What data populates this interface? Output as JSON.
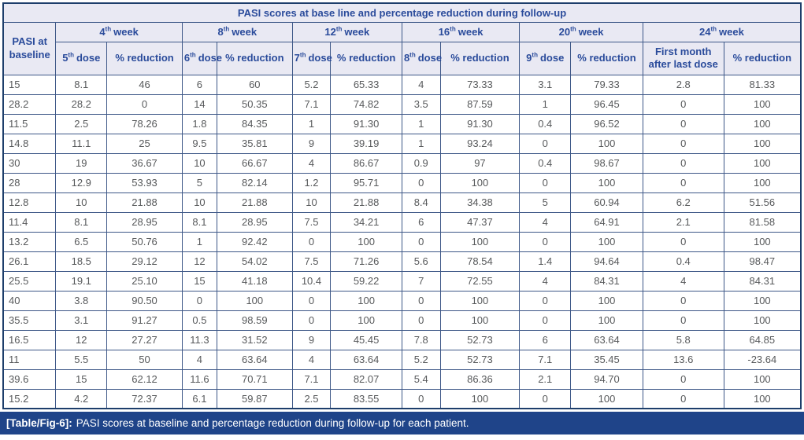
{
  "title": "PASI scores at base line and percentage reduction during follow-up",
  "header": {
    "baseline_label": "PASI at baseline",
    "pct_reduction": "% reduction",
    "first_month": "First month after last dose",
    "weeks": [
      {
        "num": "4",
        "ord": "th",
        "word": "week"
      },
      {
        "num": "8",
        "ord": "th",
        "word": "week"
      },
      {
        "num": "12",
        "ord": "th",
        "word": "week"
      },
      {
        "num": "16",
        "ord": "th",
        "word": "week"
      },
      {
        "num": "20",
        "ord": "th",
        "word": "week"
      },
      {
        "num": "24",
        "ord": "th",
        "word": "week"
      }
    ],
    "doses": [
      {
        "num": "5",
        "ord": "th",
        "word": "dose"
      },
      {
        "num": "6",
        "ord": "th",
        "word": "dose"
      },
      {
        "num": "7",
        "ord": "th",
        "word": "dose"
      },
      {
        "num": "8",
        "ord": "th",
        "word": "dose"
      },
      {
        "num": "9",
        "ord": "th",
        "word": "dose"
      }
    ]
  },
  "table": {
    "rows": [
      [
        "15",
        "8.1",
        "46",
        "6",
        "60",
        "5.2",
        "65.33",
        "4",
        "73.33",
        "3.1",
        "79.33",
        "2.8",
        "81.33"
      ],
      [
        "28.2",
        "28.2",
        "0",
        "14",
        "50.35",
        "7.1",
        "74.82",
        "3.5",
        "87.59",
        "1",
        "96.45",
        "0",
        "100"
      ],
      [
        "11.5",
        "2.5",
        "78.26",
        "1.8",
        "84.35",
        "1",
        "91.30",
        "1",
        "91.30",
        "0.4",
        "96.52",
        "0",
        "100"
      ],
      [
        "14.8",
        "11.1",
        "25",
        "9.5",
        "35.81",
        "9",
        "39.19",
        "1",
        "93.24",
        "0",
        "100",
        "0",
        "100"
      ],
      [
        "30",
        "19",
        "36.67",
        "10",
        "66.67",
        "4",
        "86.67",
        "0.9",
        "97",
        "0.4",
        "98.67",
        "0",
        "100"
      ],
      [
        "28",
        "12.9",
        "53.93",
        "5",
        "82.14",
        "1.2",
        "95.71",
        "0",
        "100",
        "0",
        "100",
        "0",
        "100"
      ],
      [
        "12.8",
        "10",
        "21.88",
        "10",
        "21.88",
        "10",
        "21.88",
        "8.4",
        "34.38",
        "5",
        "60.94",
        "6.2",
        "51.56"
      ],
      [
        "11.4",
        "8.1",
        "28.95",
        "8.1",
        "28.95",
        "7.5",
        "34.21",
        "6",
        "47.37",
        "4",
        "64.91",
        "2.1",
        "81.58"
      ],
      [
        "13.2",
        "6.5",
        "50.76",
        "1",
        "92.42",
        "0",
        "100",
        "0",
        "100",
        "0",
        "100",
        "0",
        "100"
      ],
      [
        "26.1",
        "18.5",
        "29.12",
        "12",
        "54.02",
        "7.5",
        "71.26",
        "5.6",
        "78.54",
        "1.4",
        "94.64",
        "0.4",
        "98.47"
      ],
      [
        "25.5",
        "19.1",
        "25.10",
        "15",
        "41.18",
        "10.4",
        "59.22",
        "7",
        "72.55",
        "4",
        "84.31",
        "4",
        "84.31"
      ],
      [
        "40",
        "3.8",
        "90.50",
        "0",
        "100",
        "0",
        "100",
        "0",
        "100",
        "0",
        "100",
        "0",
        "100"
      ],
      [
        "35.5",
        "3.1",
        "91.27",
        "0.5",
        "98.59",
        "0",
        "100",
        "0",
        "100",
        "0",
        "100",
        "0",
        "100"
      ],
      [
        "16.5",
        "12",
        "27.27",
        "11.3",
        "31.52",
        "9",
        "45.45",
        "7.8",
        "52.73",
        "6",
        "63.64",
        "5.8",
        "64.85"
      ],
      [
        "11",
        "5.5",
        "50",
        "4",
        "63.64",
        "4",
        "63.64",
        "5.2",
        "52.73",
        "7.1",
        "35.45",
        "13.6",
        "-23.64"
      ],
      [
        "39.6",
        "15",
        "62.12",
        "11.6",
        "70.71",
        "7.1",
        "82.07",
        "5.4",
        "86.36",
        "2.1",
        "94.70",
        "0",
        "100"
      ],
      [
        "15.2",
        "4.2",
        "72.37",
        "6.1",
        "59.87",
        "2.5",
        "83.55",
        "0",
        "100",
        "0",
        "100",
        "0",
        "100"
      ]
    ]
  },
  "caption": {
    "tag": "[Table/Fig-6]:",
    "text": "PASI scores at baseline and percentage reduction during follow-up for each patient."
  },
  "colors": {
    "header_bg": "#e9e9f3",
    "header_text": "#2a4b9b",
    "border": "#3d5787",
    "outer_border": "#1d3e6b",
    "data_text": "#57595b",
    "caption_bg": "#1f4489",
    "caption_text": "#ffffff"
  }
}
